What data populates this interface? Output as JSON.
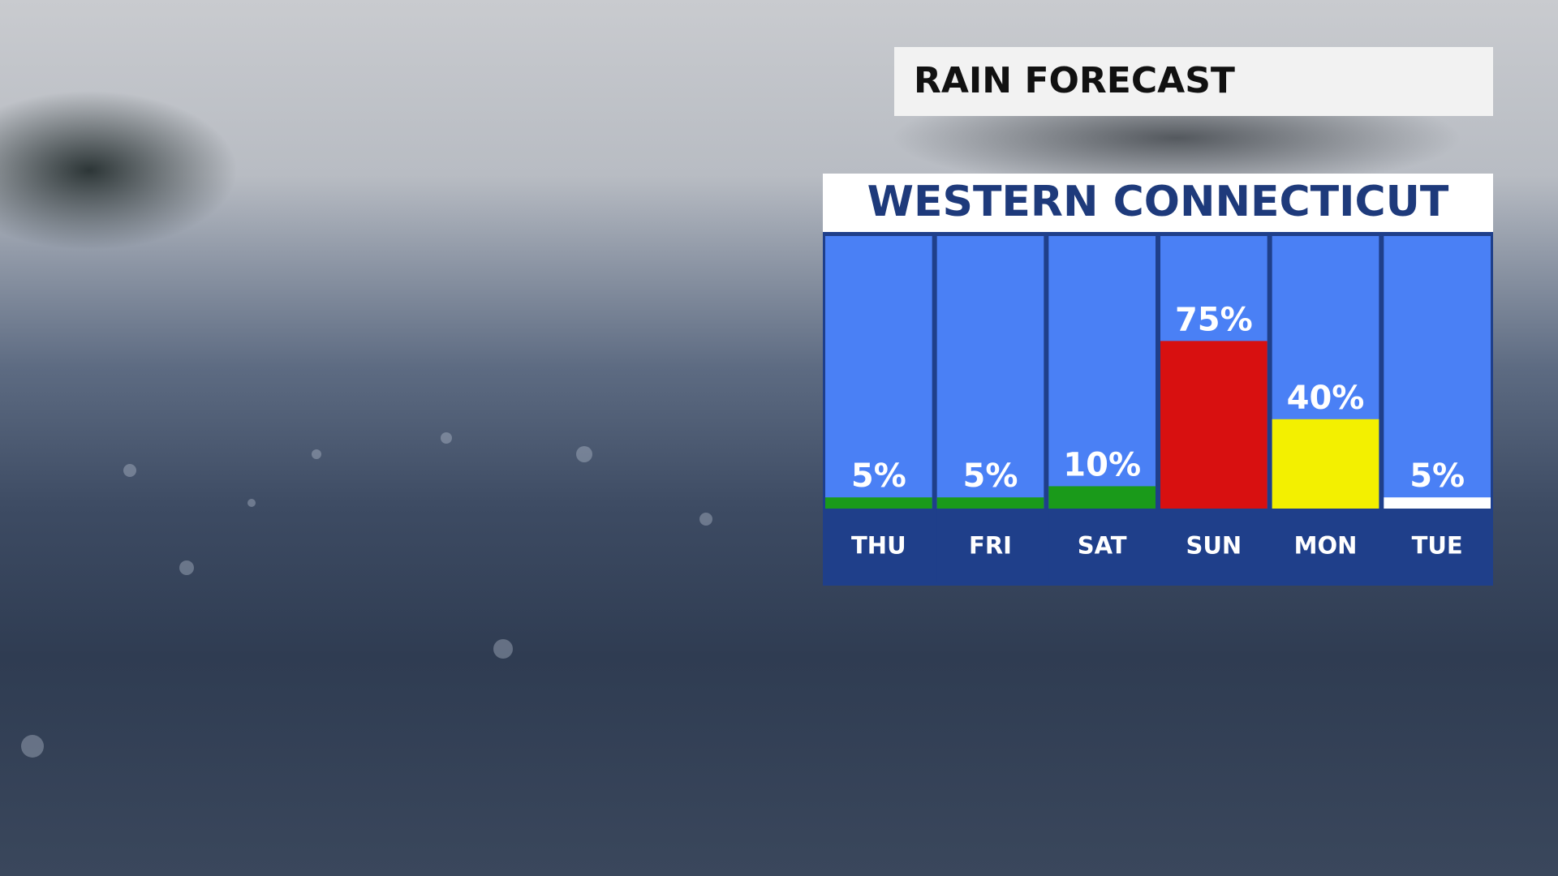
{
  "chart_data": {
    "type": "bar",
    "title": "RAIN FORECAST",
    "subtitle": "WESTERN CONNECTICUT",
    "categories": [
      "THU",
      "FRI",
      "SAT",
      "SUN",
      "MON",
      "TUE"
    ],
    "values": [
      5,
      5,
      10,
      75,
      40,
      5
    ],
    "value_labels": [
      "5%",
      "5%",
      "10%",
      "75%",
      "40%",
      "5%"
    ],
    "colors": [
      "#1a9a1a",
      "#1a9a1a",
      "#1a9a1a",
      "#d81010",
      "#f3f000",
      "#ffffff"
    ]
  }
}
